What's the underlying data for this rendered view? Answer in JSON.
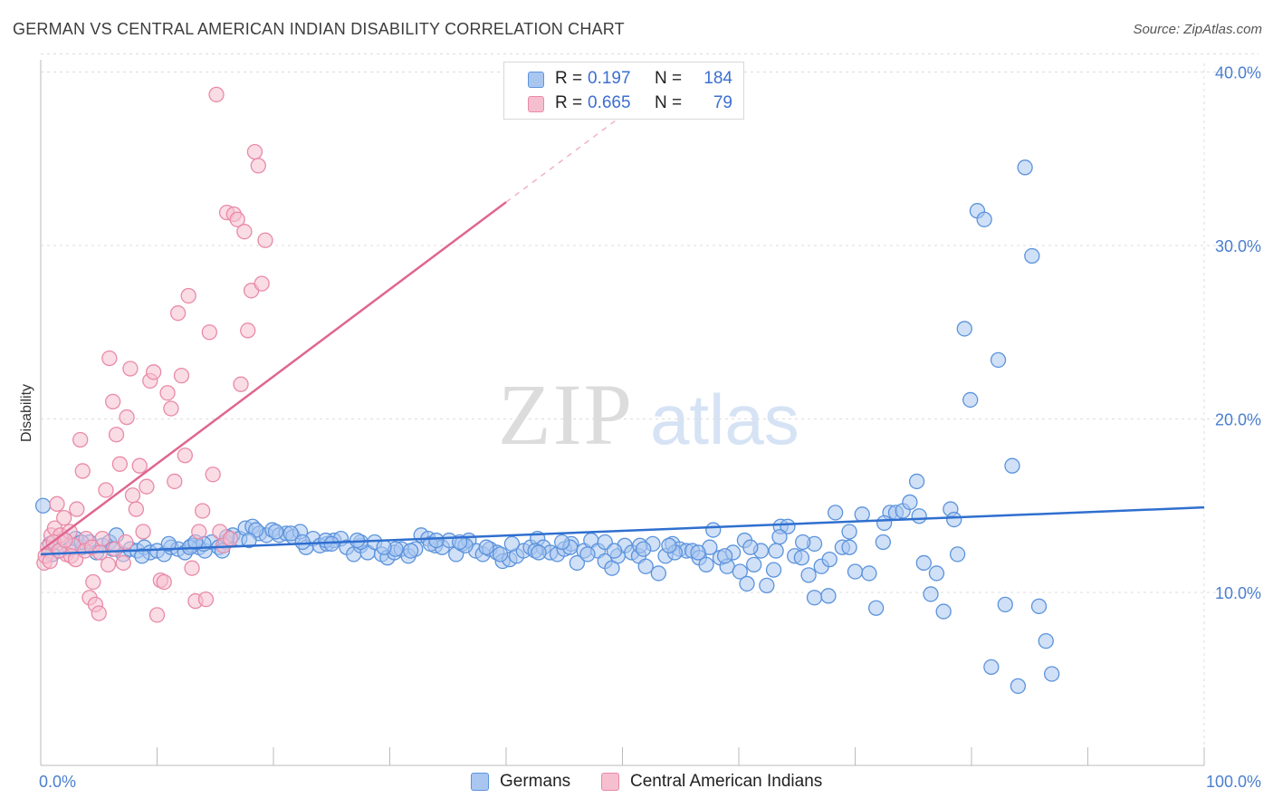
{
  "title": "GERMAN VS CENTRAL AMERICAN INDIAN DISABILITY CORRELATION CHART",
  "source": "Source: ZipAtlas.com",
  "watermark": {
    "zip": "ZIP",
    "atlas": "atlas"
  },
  "colors": {
    "blue_fill": "#a9c6f0",
    "blue_stroke": "#5b93dc",
    "blue_line": "#2f6fcf",
    "pink_fill": "#f6bfd0",
    "pink_stroke": "#e98aa8",
    "pink_line": "#e0668f",
    "grid": "#dddddd",
    "tick_text": "#4a7fd0"
  },
  "legend_top": [
    {
      "r_label": "R =",
      "r_value": "0.197",
      "n_label": "N =",
      "n_value": "184"
    },
    {
      "r_label": "R =",
      "r_value": "0.665",
      "n_label": "N =",
      "n_value": "79"
    }
  ],
  "chart_data": {
    "type": "scatter",
    "title": "GERMAN VS CENTRAL AMERICAN INDIAN DISABILITY CORRELATION CHART",
    "xlabel": "",
    "ylabel": "Disability",
    "xlim": [
      0,
      100
    ],
    "ylim": [
      0,
      42
    ],
    "x_tick_labels": [
      "0.0%",
      "100.0%"
    ],
    "y_ticks": [
      10,
      20,
      30,
      40
    ],
    "y_tick_labels": [
      "10.0%",
      "20.0%",
      "30.0%",
      "40.0%"
    ],
    "grid": true,
    "legend_position": "bottom",
    "series": [
      {
        "name": "Germans",
        "color": "#a9c6f0",
        "trend": {
          "x0": 0,
          "y0": 12.2,
          "x1": 100,
          "y1": 14.9,
          "style": "solid"
        },
        "points": [
          [
            0.2,
            15.0
          ],
          [
            0.8,
            12.8
          ],
          [
            1.5,
            12.4
          ],
          [
            2.1,
            13.0
          ],
          [
            2.5,
            12.5
          ],
          [
            3.0,
            13.1
          ],
          [
            3.6,
            12.6
          ],
          [
            4.2,
            12.9
          ],
          [
            4.8,
            12.3
          ],
          [
            5.3,
            12.7
          ],
          [
            5.9,
            12.9
          ],
          [
            6.5,
            13.3
          ],
          [
            7.1,
            12.2
          ],
          [
            7.7,
            12.5
          ],
          [
            8.3,
            12.4
          ],
          [
            8.9,
            12.6
          ],
          [
            9.4,
            12.3
          ],
          [
            10.0,
            12.4
          ],
          [
            10.6,
            12.2
          ],
          [
            11.2,
            12.6
          ],
          [
            11.8,
            12.5
          ],
          [
            12.4,
            12.3
          ],
          [
            13.0,
            12.7
          ],
          [
            13.6,
            12.6
          ],
          [
            14.1,
            12.4
          ],
          [
            14.7,
            12.9
          ],
          [
            15.3,
            12.6
          ],
          [
            15.9,
            12.9
          ],
          [
            16.5,
            13.3
          ],
          [
            17.1,
            13.1
          ],
          [
            17.6,
            13.7
          ],
          [
            18.2,
            13.8
          ],
          [
            18.8,
            13.4
          ],
          [
            19.4,
            13.3
          ],
          [
            19.9,
            13.6
          ],
          [
            20.5,
            13.3
          ],
          [
            21.1,
            13.4
          ],
          [
            21.7,
            13.2
          ],
          [
            22.3,
            13.5
          ],
          [
            22.8,
            12.6
          ],
          [
            23.4,
            13.1
          ],
          [
            24.0,
            12.7
          ],
          [
            24.6,
            12.8
          ],
          [
            25.2,
            13.0
          ],
          [
            25.8,
            13.1
          ],
          [
            26.3,
            12.6
          ],
          [
            26.9,
            12.2
          ],
          [
            27.5,
            12.7
          ],
          [
            28.1,
            12.3
          ],
          [
            28.7,
            12.9
          ],
          [
            29.3,
            12.2
          ],
          [
            29.8,
            12.0
          ],
          [
            30.4,
            12.3
          ],
          [
            31.0,
            12.5
          ],
          [
            31.6,
            12.1
          ],
          [
            32.2,
            12.5
          ],
          [
            32.7,
            13.3
          ],
          [
            33.3,
            13.1
          ],
          [
            33.9,
            12.7
          ],
          [
            34.5,
            12.6
          ],
          [
            35.1,
            13.0
          ],
          [
            35.7,
            12.2
          ],
          [
            36.2,
            12.8
          ],
          [
            36.8,
            13.0
          ],
          [
            37.4,
            12.4
          ],
          [
            38.0,
            12.2
          ],
          [
            38.6,
            12.5
          ],
          [
            39.2,
            12.3
          ],
          [
            39.7,
            11.8
          ],
          [
            40.3,
            11.9
          ],
          [
            40.9,
            12.1
          ],
          [
            41.5,
            12.4
          ],
          [
            42.1,
            12.6
          ],
          [
            42.7,
            13.1
          ],
          [
            43.2,
            12.6
          ],
          [
            43.8,
            12.3
          ],
          [
            44.4,
            12.2
          ],
          [
            45.0,
            12.5
          ],
          [
            45.6,
            12.8
          ],
          [
            46.1,
            11.7
          ],
          [
            46.7,
            12.4
          ],
          [
            47.3,
            13.0
          ],
          [
            47.9,
            12.4
          ],
          [
            48.5,
            11.8
          ],
          [
            49.1,
            11.4
          ],
          [
            49.6,
            12.1
          ],
          [
            50.2,
            12.7
          ],
          [
            50.8,
            12.3
          ],
          [
            51.4,
            12.1
          ],
          [
            52.0,
            11.5
          ],
          [
            52.6,
            12.8
          ],
          [
            53.1,
            11.1
          ],
          [
            53.7,
            12.1
          ],
          [
            54.3,
            12.8
          ],
          [
            54.9,
            12.5
          ],
          [
            55.5,
            12.4
          ],
          [
            56.0,
            12.4
          ],
          [
            56.6,
            12.0
          ],
          [
            57.2,
            11.6
          ],
          [
            57.8,
            13.6
          ],
          [
            58.4,
            12.0
          ],
          [
            59.0,
            11.5
          ],
          [
            59.5,
            12.3
          ],
          [
            60.1,
            11.2
          ],
          [
            60.7,
            10.5
          ],
          [
            61.3,
            11.6
          ],
          [
            61.9,
            12.4
          ],
          [
            62.4,
            10.4
          ],
          [
            63.0,
            11.3
          ],
          [
            63.6,
            13.8
          ],
          [
            64.2,
            13.8
          ],
          [
            64.8,
            12.1
          ],
          [
            65.4,
            12.0
          ],
          [
            66.0,
            11.0
          ],
          [
            66.5,
            9.7
          ],
          [
            67.1,
            11.5
          ],
          [
            67.7,
            9.8
          ],
          [
            68.3,
            14.6
          ],
          [
            68.9,
            12.6
          ],
          [
            69.5,
            12.6
          ],
          [
            70.0,
            11.2
          ],
          [
            70.6,
            14.5
          ],
          [
            71.2,
            11.1
          ],
          [
            71.8,
            9.1
          ],
          [
            72.4,
            12.9
          ],
          [
            73.0,
            14.6
          ],
          [
            73.5,
            14.6
          ],
          [
            74.1,
            14.7
          ],
          [
            74.7,
            15.2
          ],
          [
            75.3,
            16.4
          ],
          [
            75.9,
            11.7
          ],
          [
            76.5,
            9.9
          ],
          [
            77.0,
            11.1
          ],
          [
            77.6,
            8.9
          ],
          [
            78.2,
            14.8
          ],
          [
            78.8,
            12.2
          ],
          [
            79.4,
            25.2
          ],
          [
            79.9,
            21.1
          ],
          [
            80.5,
            32.0
          ],
          [
            81.1,
            31.5
          ],
          [
            81.7,
            5.7
          ],
          [
            82.3,
            23.4
          ],
          [
            82.9,
            9.3
          ],
          [
            83.5,
            17.3
          ],
          [
            84.0,
            4.6
          ],
          [
            84.6,
            34.5
          ],
          [
            85.2,
            29.4
          ],
          [
            85.8,
            9.2
          ],
          [
            86.4,
            7.2
          ],
          [
            86.9,
            5.3
          ],
          [
            12.8,
            12.6
          ],
          [
            14.0,
            12.8
          ],
          [
            16.0,
            13.2
          ],
          [
            18.5,
            13.6
          ],
          [
            21.5,
            13.4
          ],
          [
            24.5,
            13.0
          ],
          [
            27.5,
            12.9
          ],
          [
            30.5,
            12.5
          ],
          [
            33.5,
            12.8
          ],
          [
            36.5,
            12.7
          ],
          [
            39.5,
            12.2
          ],
          [
            42.5,
            12.4
          ],
          [
            45.5,
            12.6
          ],
          [
            48.5,
            12.9
          ],
          [
            51.5,
            12.7
          ],
          [
            54.5,
            12.3
          ],
          [
            57.5,
            12.6
          ],
          [
            60.5,
            13.0
          ],
          [
            63.5,
            13.2
          ],
          [
            66.5,
            12.8
          ],
          [
            69.5,
            13.5
          ],
          [
            72.5,
            14.0
          ],
          [
            75.5,
            14.4
          ],
          [
            78.5,
            14.2
          ],
          [
            1.0,
            12.2
          ],
          [
            3.5,
            12.9
          ],
          [
            6.2,
            12.5
          ],
          [
            8.7,
            12.1
          ],
          [
            11.0,
            12.8
          ],
          [
            13.3,
            12.9
          ],
          [
            15.6,
            12.4
          ],
          [
            17.9,
            13.0
          ],
          [
            20.2,
            13.5
          ],
          [
            22.5,
            12.9
          ],
          [
            25.0,
            12.8
          ],
          [
            27.2,
            13.0
          ],
          [
            29.5,
            12.6
          ],
          [
            31.8,
            12.4
          ],
          [
            34.0,
            13.0
          ],
          [
            36.0,
            12.9
          ],
          [
            38.3,
            12.6
          ],
          [
            40.5,
            12.8
          ],
          [
            42.8,
            12.3
          ],
          [
            44.8,
            12.9
          ],
          [
            47.0,
            12.2
          ],
          [
            49.3,
            12.4
          ],
          [
            51.8,
            12.5
          ],
          [
            54.0,
            12.7
          ],
          [
            56.5,
            12.3
          ],
          [
            58.8,
            12.1
          ],
          [
            61.0,
            12.6
          ],
          [
            63.2,
            12.4
          ],
          [
            65.5,
            12.9
          ],
          [
            67.8,
            11.9
          ]
        ]
      },
      {
        "name": "Central American Indians",
        "color": "#f6bfd0",
        "trend": {
          "x0": 0,
          "y0": 12.4,
          "x1": 40,
          "y1": 32.5,
          "x2": 53,
          "y2": 39.0,
          "style": "solid-then-dashed"
        },
        "points": [
          [
            0.3,
            11.7
          ],
          [
            0.6,
            12.6
          ],
          [
            0.9,
            13.3
          ],
          [
            1.2,
            13.7
          ],
          [
            1.4,
            15.1
          ],
          [
            1.7,
            13.3
          ],
          [
            2.0,
            14.3
          ],
          [
            2.2,
            12.2
          ],
          [
            2.5,
            13.5
          ],
          [
            2.8,
            12.7
          ],
          [
            3.1,
            14.8
          ],
          [
            3.4,
            18.8
          ],
          [
            3.6,
            17.0
          ],
          [
            3.9,
            13.1
          ],
          [
            4.2,
            9.7
          ],
          [
            4.5,
            10.6
          ],
          [
            4.7,
            9.3
          ],
          [
            5.0,
            8.8
          ],
          [
            5.3,
            13.1
          ],
          [
            5.6,
            15.9
          ],
          [
            5.9,
            23.5
          ],
          [
            6.2,
            21.0
          ],
          [
            6.5,
            19.1
          ],
          [
            6.8,
            17.4
          ],
          [
            7.1,
            11.7
          ],
          [
            7.4,
            20.1
          ],
          [
            7.7,
            22.9
          ],
          [
            7.9,
            15.6
          ],
          [
            8.2,
            14.8
          ],
          [
            8.5,
            17.3
          ],
          [
            8.8,
            13.5
          ],
          [
            9.1,
            16.1
          ],
          [
            9.4,
            22.2
          ],
          [
            9.7,
            22.7
          ],
          [
            10.0,
            8.7
          ],
          [
            10.3,
            10.7
          ],
          [
            10.6,
            10.6
          ],
          [
            10.9,
            21.5
          ],
          [
            11.2,
            20.6
          ],
          [
            11.5,
            16.4
          ],
          [
            11.8,
            26.1
          ],
          [
            12.1,
            22.5
          ],
          [
            12.4,
            17.9
          ],
          [
            12.7,
            27.1
          ],
          [
            13.0,
            11.4
          ],
          [
            13.3,
            9.5
          ],
          [
            13.6,
            13.5
          ],
          [
            13.9,
            14.7
          ],
          [
            14.2,
            9.6
          ],
          [
            14.5,
            25.0
          ],
          [
            14.8,
            16.8
          ],
          [
            15.1,
            38.7
          ],
          [
            15.4,
            13.5
          ],
          [
            15.7,
            12.7
          ],
          [
            16.0,
            31.9
          ],
          [
            16.3,
            13.1
          ],
          [
            16.6,
            31.8
          ],
          [
            16.9,
            31.5
          ],
          [
            17.2,
            22.0
          ],
          [
            17.5,
            30.8
          ],
          [
            17.8,
            25.1
          ],
          [
            18.1,
            27.4
          ],
          [
            18.4,
            35.4
          ],
          [
            18.7,
            34.6
          ],
          [
            19.0,
            27.8
          ],
          [
            19.3,
            30.3
          ],
          [
            0.4,
            12.1
          ],
          [
            0.8,
            11.8
          ],
          [
            1.1,
            12.9
          ],
          [
            1.6,
            12.4
          ],
          [
            2.1,
            13.0
          ],
          [
            2.6,
            12.1
          ],
          [
            3.0,
            11.9
          ],
          [
            3.8,
            12.4
          ],
          [
            4.4,
            12.6
          ],
          [
            5.1,
            12.3
          ],
          [
            5.8,
            11.6
          ],
          [
            6.4,
            12.5
          ],
          [
            7.3,
            12.9
          ]
        ]
      }
    ]
  },
  "legend_bottom": [
    {
      "label": "Germans"
    },
    {
      "label": "Central American Indians"
    }
  ]
}
